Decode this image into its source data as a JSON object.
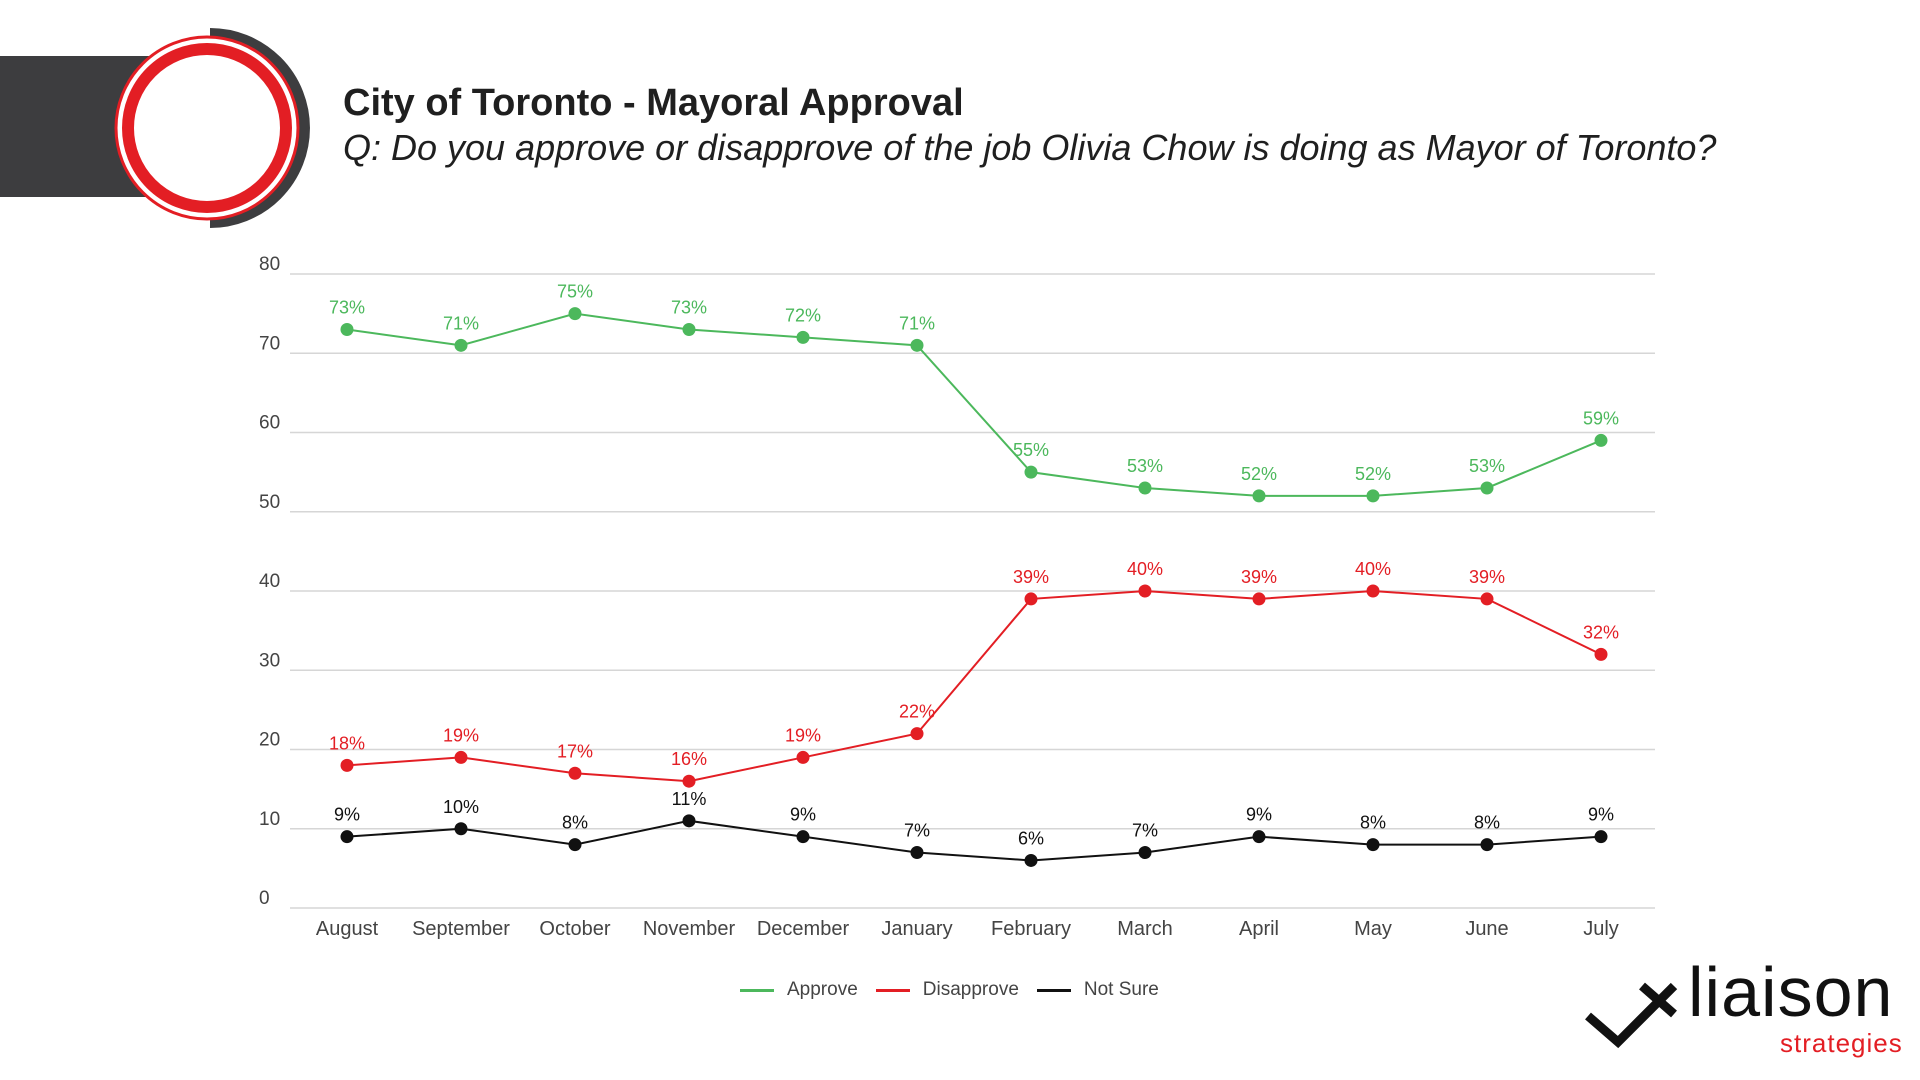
{
  "title": "City of Toronto - Mayoral Approval",
  "subtitle": "Q: Do you approve or disapprove of the job Olivia Chow is doing as Mayor of Toronto?",
  "colors": {
    "approve": "#4cb85c",
    "disapprove": "#e31e24",
    "not_sure": "#111111",
    "grid": "#d6d6d6",
    "banner": "#3d3d3f"
  },
  "logo": {
    "word": "liaison",
    "sub": "strategies"
  },
  "chart_data": {
    "type": "line",
    "categories": [
      "August",
      "September",
      "October",
      "November",
      "December",
      "January",
      "February",
      "March",
      "April",
      "May",
      "June",
      "July"
    ],
    "yticks": [
      0,
      10,
      20,
      30,
      40,
      50,
      60,
      70,
      80
    ],
    "ylim": [
      0,
      80
    ],
    "legend_position": "bottom",
    "series": [
      {
        "name": "Approve",
        "color": "#4cb85c",
        "values": [
          73,
          71,
          75,
          73,
          72,
          71,
          55,
          53,
          52,
          52,
          53,
          59
        ],
        "labels": [
          "73%",
          "71%",
          "75%",
          "73%",
          "72%",
          "71%",
          "55%",
          "53%",
          "52%",
          "52%",
          "53%",
          "59%"
        ]
      },
      {
        "name": "Disapprove",
        "color": "#e31e24",
        "values": [
          18,
          19,
          17,
          16,
          19,
          22,
          39,
          40,
          39,
          40,
          39,
          32
        ],
        "labels": [
          "18%",
          "19%",
          "17%",
          "16%",
          "19%",
          "22%",
          "39%",
          "40%",
          "39%",
          "40%",
          "39%",
          "32%"
        ]
      },
      {
        "name": "Not Sure",
        "color": "#111111",
        "values": [
          9,
          10,
          8,
          11,
          9,
          7,
          6,
          7,
          9,
          8,
          8,
          9
        ],
        "labels": [
          "9%",
          "10%",
          "8%",
          "11%",
          "9%",
          "7%",
          "6%",
          "7%",
          "9%",
          "8%",
          "8%",
          "9%"
        ]
      }
    ]
  }
}
